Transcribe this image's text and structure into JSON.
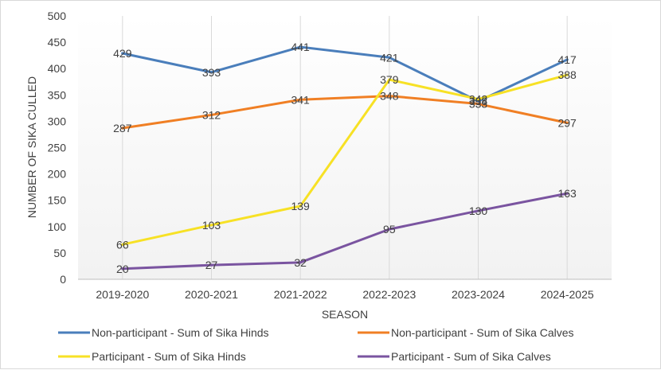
{
  "chart_data": {
    "type": "line",
    "title": "",
    "xlabel": "SEASON",
    "ylabel": "NUMBER OF SIKA CULLED",
    "ylim": [
      0,
      500
    ],
    "yticks": [
      0,
      50,
      100,
      150,
      200,
      250,
      300,
      350,
      400,
      450,
      500
    ],
    "categories": [
      "2019-2020",
      "2020-2021",
      "2021-2022",
      "2022-2023",
      "2023-2024",
      "2024-2025"
    ],
    "grid": "vertical",
    "legend_position": "bottom",
    "series": [
      {
        "name": "Non-participant - Sum of Sika Hinds",
        "color": "#4a7ebb",
        "values": [
          429,
          393,
          441,
          421,
          338,
          417
        ]
      },
      {
        "name": "Non-participant - Sum of Sika Calves",
        "color": "#f07f24",
        "values": [
          287,
          312,
          341,
          348,
          333,
          297
        ]
      },
      {
        "name": "Participant - Sum of Sika Hinds",
        "color": "#f7e125",
        "values": [
          66,
          103,
          139,
          379,
          342,
          388
        ]
      },
      {
        "name": "Participant - Sum of Sika Calves",
        "color": "#7a54a0",
        "values": [
          20,
          27,
          32,
          95,
          130,
          163
        ]
      }
    ]
  }
}
